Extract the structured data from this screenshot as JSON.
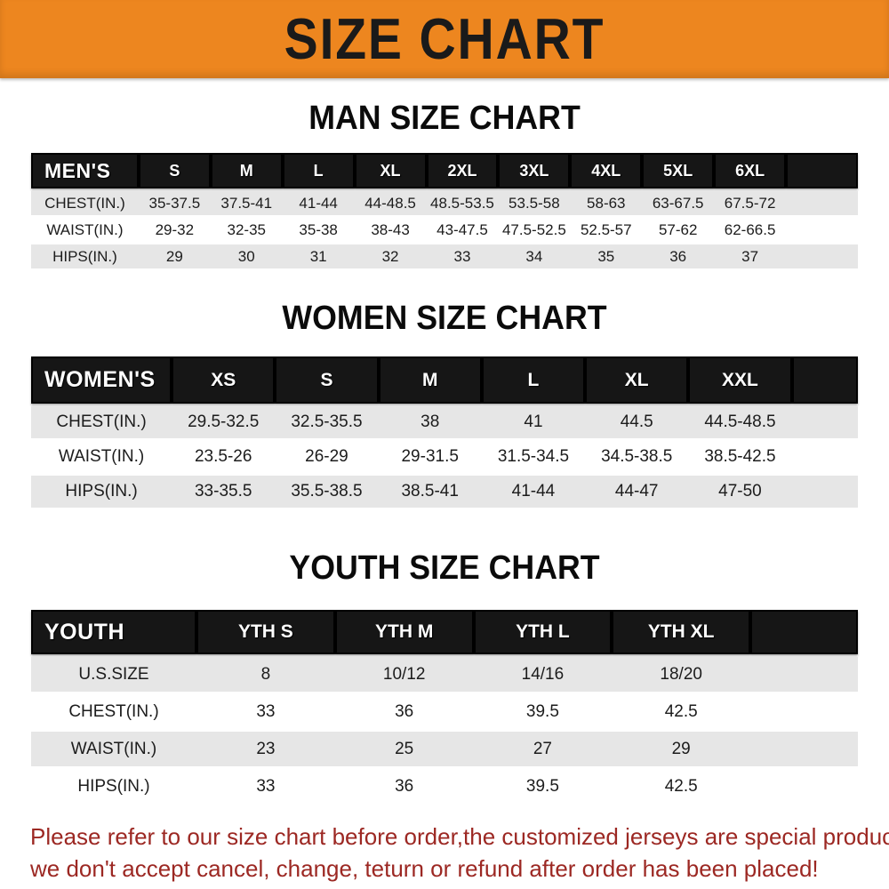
{
  "banner": {
    "title": "SIZE CHART"
  },
  "theme": {
    "banner-bg": "#ED861F",
    "banner-text": "#1A1A1A",
    "header-bg": "#161616",
    "header-text": "#FFFFFF",
    "row-gray": "#E6E6E6",
    "row-white": "#FFFFFF",
    "notice-red": "#9C2823"
  },
  "sections": [
    {
      "title": "MAN SIZE CHART",
      "header_label": "MEN'S",
      "columns": [
        "S",
        "M",
        "L",
        "XL",
        "2XL",
        "3XL",
        "4XL",
        "5XL",
        "6XL"
      ],
      "rows": [
        {
          "label": "CHEST(IN.)",
          "values": [
            "35-37.5",
            "37.5-41",
            "41-44",
            "44-48.5",
            "48.5-53.5",
            "53.5-58",
            "58-63",
            "63-67.5",
            "67.5-72"
          ]
        },
        {
          "label": "WAIST(IN.)",
          "values": [
            "29-32",
            "32-35",
            "35-38",
            "38-43",
            "43-47.5",
            "47.5-52.5",
            "52.5-57",
            "57-62",
            "62-66.5"
          ]
        },
        {
          "label": "HIPS(IN.)",
          "values": [
            "29",
            "30",
            "31",
            "32",
            "33",
            "34",
            "35",
            "36",
            "37"
          ]
        }
      ]
    },
    {
      "title": "WOMEN SIZE CHART",
      "header_label": "WOMEN'S",
      "columns": [
        "XS",
        "S",
        "M",
        "L",
        "XL",
        "XXL"
      ],
      "rows": [
        {
          "label": "CHEST(IN.)",
          "values": [
            "29.5-32.5",
            "32.5-35.5",
            "38",
            "41",
            "44.5",
            "44.5-48.5"
          ]
        },
        {
          "label": "WAIST(IN.)",
          "values": [
            "23.5-26",
            "26-29",
            "29-31.5",
            "31.5-34.5",
            "34.5-38.5",
            "38.5-42.5"
          ]
        },
        {
          "label": "HIPS(IN.)",
          "values": [
            "33-35.5",
            "35.5-38.5",
            "38.5-41",
            "41-44",
            "44-47",
            "47-50"
          ]
        }
      ]
    },
    {
      "title": "YOUTH SIZE CHART",
      "header_label": "YOUTH",
      "columns": [
        "YTH S",
        "YTH M",
        "YTH L",
        "YTH XL"
      ],
      "rows": [
        {
          "label": "U.S.SIZE",
          "values": [
            "8",
            "10/12",
            "14/16",
            "18/20"
          ]
        },
        {
          "label": "CHEST(IN.)",
          "values": [
            "33",
            "36",
            "39.5",
            "42.5"
          ]
        },
        {
          "label": "WAIST(IN.)",
          "values": [
            "23",
            "25",
            "27",
            "29"
          ]
        },
        {
          "label": "HIPS(IN.)",
          "values": [
            "33",
            "36",
            "39.5",
            "42.5"
          ]
        }
      ]
    }
  ],
  "footer": {
    "lines": [
      "Please refer to our size chart before order,the customized jerseys are special products,",
      "we don't accept cancel, change, teturn or refund after order has been placed!"
    ]
  }
}
